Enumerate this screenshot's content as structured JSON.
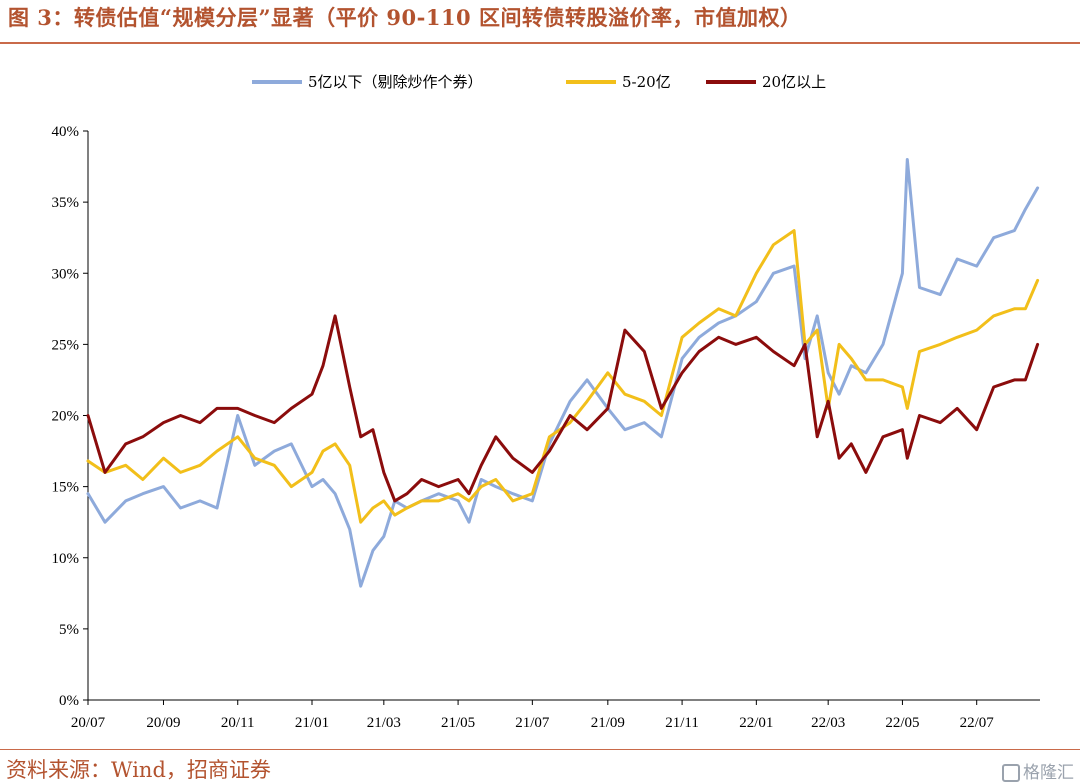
{
  "figure": {
    "title": "图 3：转债估值“规模分层”显著（平价 90-110 区间转债转股溢价率，市值加权）",
    "source": "资料来源：Wind，招商证券",
    "watermark": "格隆汇"
  },
  "chart_data": {
    "type": "line",
    "ylim": [
      0,
      40
    ],
    "yticks": [
      0,
      5,
      10,
      15,
      20,
      25,
      30,
      35,
      40
    ],
    "ytick_labels": [
      "0%",
      "5%",
      "10%",
      "15%",
      "20%",
      "25%",
      "30%",
      "35%",
      "40%"
    ],
    "xlim": [
      "2020-07-01",
      "2022-08-22"
    ],
    "xticks": [
      "2020-07-01",
      "2020-09-01",
      "2020-11-01",
      "2021-01-01",
      "2021-03-01",
      "2021-05-01",
      "2021-07-01",
      "2021-09-01",
      "2021-11-01",
      "2022-01-01",
      "2022-03-01",
      "2022-05-01",
      "2022-07-01"
    ],
    "xtick_labels": [
      "20/07",
      "20/09",
      "20/11",
      "21/01",
      "21/03",
      "21/05",
      "21/07",
      "21/09",
      "21/11",
      "22/01",
      "22/03",
      "22/05",
      "22/07"
    ],
    "grid": false,
    "legend_position": "top-center",
    "series": [
      {
        "name": "5亿以下（剔除炒作个券）",
        "color": "#8eaadb",
        "points": [
          [
            "2020-07-01",
            14.5
          ],
          [
            "2020-07-15",
            12.5
          ],
          [
            "2020-08-01",
            14.0
          ],
          [
            "2020-08-15",
            14.5
          ],
          [
            "2020-09-01",
            15.0
          ],
          [
            "2020-09-15",
            13.5
          ],
          [
            "2020-10-01",
            14.0
          ],
          [
            "2020-10-15",
            13.5
          ],
          [
            "2020-11-01",
            20.0
          ],
          [
            "2020-11-15",
            16.5
          ],
          [
            "2020-12-01",
            17.5
          ],
          [
            "2020-12-15",
            18.0
          ],
          [
            "2021-01-01",
            15.0
          ],
          [
            "2021-01-10",
            15.5
          ],
          [
            "2021-01-20",
            14.5
          ],
          [
            "2021-02-01",
            12.0
          ],
          [
            "2021-02-10",
            8.0
          ],
          [
            "2021-02-20",
            10.5
          ],
          [
            "2021-03-01",
            11.5
          ],
          [
            "2021-03-10",
            14.0
          ],
          [
            "2021-03-20",
            13.5
          ],
          [
            "2021-04-01",
            14.0
          ],
          [
            "2021-04-15",
            14.5
          ],
          [
            "2021-05-01",
            14.0
          ],
          [
            "2021-05-10",
            12.5
          ],
          [
            "2021-05-20",
            15.5
          ],
          [
            "2021-06-01",
            15.0
          ],
          [
            "2021-06-15",
            14.5
          ],
          [
            "2021-07-01",
            14.0
          ],
          [
            "2021-07-15",
            18.0
          ],
          [
            "2021-08-01",
            21.0
          ],
          [
            "2021-08-15",
            22.5
          ],
          [
            "2021-09-01",
            20.5
          ],
          [
            "2021-09-15",
            19.0
          ],
          [
            "2021-10-01",
            19.5
          ],
          [
            "2021-10-15",
            18.5
          ],
          [
            "2021-11-01",
            24.0
          ],
          [
            "2021-11-15",
            25.5
          ],
          [
            "2021-12-01",
            26.5
          ],
          [
            "2021-12-15",
            27.0
          ],
          [
            "2022-01-01",
            28.0
          ],
          [
            "2022-01-15",
            30.0
          ],
          [
            "2022-02-01",
            30.5
          ],
          [
            "2022-02-10",
            24.0
          ],
          [
            "2022-02-20",
            27.0
          ],
          [
            "2022-03-01",
            23.0
          ],
          [
            "2022-03-10",
            21.5
          ],
          [
            "2022-03-20",
            23.5
          ],
          [
            "2022-04-01",
            23.0
          ],
          [
            "2022-04-15",
            25.0
          ],
          [
            "2022-05-01",
            30.0
          ],
          [
            "2022-05-05",
            38.0
          ],
          [
            "2022-05-15",
            29.0
          ],
          [
            "2022-06-01",
            28.5
          ],
          [
            "2022-06-15",
            31.0
          ],
          [
            "2022-07-01",
            30.5
          ],
          [
            "2022-07-15",
            32.5
          ],
          [
            "2022-08-01",
            33.0
          ],
          [
            "2022-08-10",
            34.5
          ],
          [
            "2022-08-20",
            36.0
          ]
        ]
      },
      {
        "name": "5-20亿",
        "color": "#f2bf1a",
        "points": [
          [
            "2020-07-01",
            16.8
          ],
          [
            "2020-07-15",
            16.0
          ],
          [
            "2020-08-01",
            16.5
          ],
          [
            "2020-08-15",
            15.5
          ],
          [
            "2020-09-01",
            17.0
          ],
          [
            "2020-09-15",
            16.0
          ],
          [
            "2020-10-01",
            16.5
          ],
          [
            "2020-10-15",
            17.5
          ],
          [
            "2020-11-01",
            18.5
          ],
          [
            "2020-11-15",
            17.0
          ],
          [
            "2020-12-01",
            16.5
          ],
          [
            "2020-12-15",
            15.0
          ],
          [
            "2021-01-01",
            16.0
          ],
          [
            "2021-01-10",
            17.5
          ],
          [
            "2021-01-20",
            18.0
          ],
          [
            "2021-02-01",
            16.5
          ],
          [
            "2021-02-10",
            12.5
          ],
          [
            "2021-02-20",
            13.5
          ],
          [
            "2021-03-01",
            14.0
          ],
          [
            "2021-03-10",
            13.0
          ],
          [
            "2021-03-20",
            13.5
          ],
          [
            "2021-04-01",
            14.0
          ],
          [
            "2021-04-15",
            14.0
          ],
          [
            "2021-05-01",
            14.5
          ],
          [
            "2021-05-10",
            14.0
          ],
          [
            "2021-05-20",
            15.0
          ],
          [
            "2021-06-01",
            15.5
          ],
          [
            "2021-06-15",
            14.0
          ],
          [
            "2021-07-01",
            14.5
          ],
          [
            "2021-07-15",
            18.5
          ],
          [
            "2021-08-01",
            19.5
          ],
          [
            "2021-08-15",
            21.0
          ],
          [
            "2021-09-01",
            23.0
          ],
          [
            "2021-09-15",
            21.5
          ],
          [
            "2021-10-01",
            21.0
          ],
          [
            "2021-10-15",
            20.0
          ],
          [
            "2021-11-01",
            25.5
          ],
          [
            "2021-11-15",
            26.5
          ],
          [
            "2021-12-01",
            27.5
          ],
          [
            "2021-12-15",
            27.0
          ],
          [
            "2022-01-01",
            30.0
          ],
          [
            "2022-01-15",
            32.0
          ],
          [
            "2022-02-01",
            33.0
          ],
          [
            "2022-02-10",
            25.0
          ],
          [
            "2022-02-20",
            26.0
          ],
          [
            "2022-03-01",
            20.5
          ],
          [
            "2022-03-10",
            25.0
          ],
          [
            "2022-03-20",
            24.0
          ],
          [
            "2022-04-01",
            22.5
          ],
          [
            "2022-04-15",
            22.5
          ],
          [
            "2022-05-01",
            22.0
          ],
          [
            "2022-05-05",
            20.5
          ],
          [
            "2022-05-15",
            24.5
          ],
          [
            "2022-06-01",
            25.0
          ],
          [
            "2022-06-15",
            25.5
          ],
          [
            "2022-07-01",
            26.0
          ],
          [
            "2022-07-15",
            27.0
          ],
          [
            "2022-08-01",
            27.5
          ],
          [
            "2022-08-10",
            27.5
          ],
          [
            "2022-08-20",
            29.5
          ]
        ]
      },
      {
        "name": "20亿以上",
        "color": "#8b0c0c",
        "points": [
          [
            "2020-07-01",
            20.0
          ],
          [
            "2020-07-15",
            16.0
          ],
          [
            "2020-08-01",
            18.0
          ],
          [
            "2020-08-15",
            18.5
          ],
          [
            "2020-09-01",
            19.5
          ],
          [
            "2020-09-15",
            20.0
          ],
          [
            "2020-10-01",
            19.5
          ],
          [
            "2020-10-15",
            20.5
          ],
          [
            "2020-11-01",
            20.5
          ],
          [
            "2020-11-15",
            20.0
          ],
          [
            "2020-12-01",
            19.5
          ],
          [
            "2020-12-15",
            20.5
          ],
          [
            "2021-01-01",
            21.5
          ],
          [
            "2021-01-10",
            23.5
          ],
          [
            "2021-01-20",
            27.0
          ],
          [
            "2021-02-01",
            22.0
          ],
          [
            "2021-02-10",
            18.5
          ],
          [
            "2021-02-20",
            19.0
          ],
          [
            "2021-03-01",
            16.0
          ],
          [
            "2021-03-10",
            14.0
          ],
          [
            "2021-03-20",
            14.5
          ],
          [
            "2021-04-01",
            15.5
          ],
          [
            "2021-04-15",
            15.0
          ],
          [
            "2021-05-01",
            15.5
          ],
          [
            "2021-05-10",
            14.5
          ],
          [
            "2021-05-20",
            16.5
          ],
          [
            "2021-06-01",
            18.5
          ],
          [
            "2021-06-15",
            17.0
          ],
          [
            "2021-07-01",
            16.0
          ],
          [
            "2021-07-15",
            17.5
          ],
          [
            "2021-08-01",
            20.0
          ],
          [
            "2021-08-15",
            19.0
          ],
          [
            "2021-09-01",
            20.5
          ],
          [
            "2021-09-15",
            26.0
          ],
          [
            "2021-10-01",
            24.5
          ],
          [
            "2021-10-15",
            20.5
          ],
          [
            "2021-11-01",
            23.0
          ],
          [
            "2021-11-15",
            24.5
          ],
          [
            "2021-12-01",
            25.5
          ],
          [
            "2021-12-15",
            25.0
          ],
          [
            "2022-01-01",
            25.5
          ],
          [
            "2022-01-15",
            24.5
          ],
          [
            "2022-02-01",
            23.5
          ],
          [
            "2022-02-10",
            25.0
          ],
          [
            "2022-02-20",
            18.5
          ],
          [
            "2022-03-01",
            21.0
          ],
          [
            "2022-03-10",
            17.0
          ],
          [
            "2022-03-20",
            18.0
          ],
          [
            "2022-04-01",
            16.0
          ],
          [
            "2022-04-15",
            18.5
          ],
          [
            "2022-05-01",
            19.0
          ],
          [
            "2022-05-05",
            17.0
          ],
          [
            "2022-05-15",
            20.0
          ],
          [
            "2022-06-01",
            19.5
          ],
          [
            "2022-06-15",
            20.5
          ],
          [
            "2022-07-01",
            19.0
          ],
          [
            "2022-07-15",
            22.0
          ],
          [
            "2022-08-01",
            22.5
          ],
          [
            "2022-08-10",
            22.5
          ],
          [
            "2022-08-20",
            25.0
          ]
        ]
      }
    ]
  }
}
